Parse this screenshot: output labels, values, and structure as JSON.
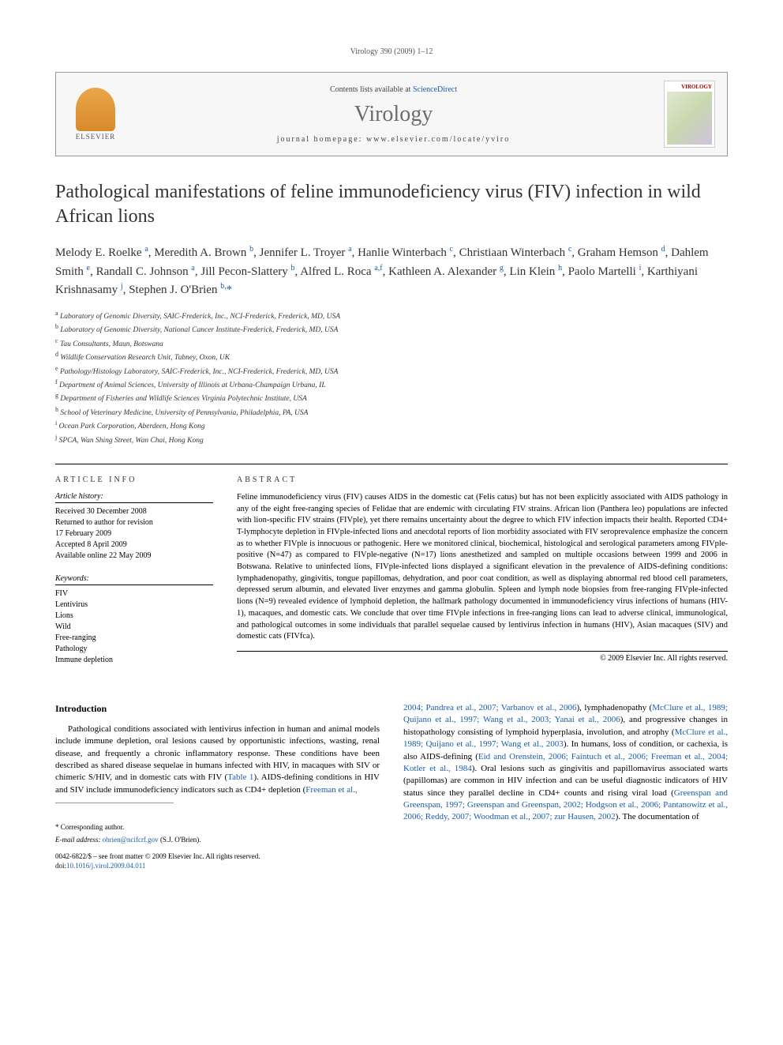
{
  "running_head": "Virology 390 (2009) 1–12",
  "banner": {
    "elsevier_label": "ELSEVIER",
    "contents_prefix": "Contents lists available at ",
    "contents_link": "ScienceDirect",
    "journal": "Virology",
    "homepage_prefix": "journal homepage: ",
    "homepage": "www.elsevier.com/locate/yviro",
    "cover_label": "VIROLOGY"
  },
  "title": "Pathological manifestations of feline immunodeficiency virus (FIV) infection in wild African lions",
  "authors_html": "Melody E. Roelke <sup>a</sup>, Meredith A. Brown <sup>b</sup>, Jennifer L. Troyer <sup>a</sup>, Hanlie Winterbach <sup>c</sup>, Christiaan Winterbach <sup>c</sup>, Graham Hemson <sup>d</sup>, Dahlem Smith <sup>e</sup>, Randall C. Johnson <sup>a</sup>, Jill Pecon-Slattery <sup>b</sup>, Alfred L. Roca <sup>a,f</sup>, Kathleen A. Alexander <sup>g</sup>, Lin Klein <sup>h</sup>, Paolo Martelli <sup>i</sup>, Karthiyani Krishnasamy <sup>j</sup>, Stephen J. O'Brien <sup>b,</sup><span class=\"star\">*</span>",
  "affiliations": [
    "a Laboratory of Genomic Diversity, SAIC-Frederick, Inc., NCI-Frederick, Frederick, MD, USA",
    "b Laboratory of Genomic Diversity, National Cancer Institute-Frederick, Frederick, MD, USA",
    "c Tau Consultants, Maun, Botswana",
    "d Wildlife Conservation Research Unit, Tubney, Oxon, UK",
    "e Pathology/Histology Laboratory, SAIC-Frederick, Inc., NCI-Frederick, Frederick, MD, USA",
    "f Department of Animal Sciences, University of Illinois at Urbana-Champaign Urbana, IL",
    "g Department of Fisheries and Wildlife Sciences Virginia Polytechnic Institute, USA",
    "h School of Veterinary Medicine, University of Pennsylvania, Philadelphia, PA, USA",
    "i Ocean Park Corporation, Aberdeen, Hong Kong",
    "j SPCA, Wan Shing Street, Wan Chai, Hong Kong"
  ],
  "article_info": {
    "heading": "ARTICLE INFO",
    "history_label": "Article history:",
    "history": [
      "Received 30 December 2008",
      "Returned to author for revision",
      "17 February 2009",
      "Accepted 8 April 2009",
      "Available online 22 May 2009"
    ],
    "keywords_label": "Keywords:",
    "keywords": [
      "FIV",
      "Lentivirus",
      "Lions",
      "Wild",
      "Free-ranging",
      "Pathology",
      "Immune depletion"
    ]
  },
  "abstract": {
    "heading": "ABSTRACT",
    "text": "Feline immunodeficiency virus (FIV) causes AIDS in the domestic cat (Felis catus) but has not been explicitly associated with AIDS pathology in any of the eight free-ranging species of Felidae that are endemic with circulating FIV strains. African lion (Panthera leo) populations are infected with lion-specific FIV strains (FIVple), yet there remains uncertainty about the degree to which FIV infection impacts their health. Reported CD4+ T-lymphocyte depletion in FIVple-infected lions and anecdotal reports of lion morbidity associated with FIV seroprevalence emphasize the concern as to whether FIVple is innocuous or pathogenic. Here we monitored clinical, biochemical, histological and serological parameters among FIVple-positive (N=47) as compared to FIVple-negative (N=17) lions anesthetized and sampled on multiple occasions between 1999 and 2006 in Botswana. Relative to uninfected lions, FIVple-infected lions displayed a significant elevation in the prevalence of AIDS-defining conditions: lymphadenopathy, gingivitis, tongue papillomas, dehydration, and poor coat condition, as well as displaying abnormal red blood cell parameters, depressed serum albumin, and elevated liver enzymes and gamma globulin. Spleen and lymph node biopsies from free-ranging FIVple-infected lions (N=9) revealed evidence of lymphoid depletion, the hallmark pathology documented in immunodeficiency virus infections of humans (HIV-1), macaques, and domestic cats. We conclude that over time FIVple infections in free-ranging lions can lead to adverse clinical, immunological, and pathological outcomes in some individuals that parallel sequelae caused by lentivirus infection in humans (HIV), Asian macaques (SIV) and domestic cats (FIVfca).",
    "copyright": "© 2009 Elsevier Inc. All rights reserved."
  },
  "body": {
    "intro_heading": "Introduction",
    "col1_html": "Pathological conditions associated with lentivirus infection in human and animal models include immune depletion, oral lesions caused by opportunistic infections, wasting, renal disease, and frequently a chronic inflammatory response. These conditions have been described as shared disease sequelae in humans infected with HIV, in macaques with SIV or chimeric S/HIV, and in domestic cats with FIV (<span class=\"citation-link\">Table 1</span>). AIDS-defining conditions in HIV and SIV include immunodeficiency indicators such as CD4+ depletion (<span class=\"citation-link\">Freeman et al.,</span>",
    "col2_html": "<span class=\"citation-link\">2004; Pandrea et al., 2007; Varbanov et al., 2006</span>), lymphadenopathy (<span class=\"citation-link\">McClure et al., 1989; Quijano et al., 1997; Wang et al., 2003; Yanai et al., 2006</span>), and progressive changes in histopathology consisting of lymphoid hyperplasia, involution, and atrophy (<span class=\"citation-link\">McClure et al., 1989; Quijano et al., 1997; Wang et al., 2003</span>). In humans, loss of condition, or cachexia, is also AIDS-defining (<span class=\"citation-link\">Eid and Orenstein, 2006; Faintuch et al., 2006; Freeman et al., 2004; Kotler et al., 1984</span>). Oral lesions such as gingivitis and papillomavirus associated warts (papillomas) are common in HIV infection and can be useful diagnostic indicators of HIV status since they parallel decline in CD4+ counts and rising viral load (<span class=\"citation-link\">Greenspan and Greenspan, 1997; Greenspan and Greenspan, 2002; Hodgson et al., 2006; Pantanowitz et al., 2006; Reddy, 2007; Woodman et al., 2007; zur Hausen, 2002</span>). The documentation of"
  },
  "footer": {
    "corr_label": "* Corresponding author.",
    "email_label": "E-mail address: ",
    "email": "obrien@ncifcrf.gov",
    "email_suffix": " (S.J. O'Brien).",
    "copyright": "0042-6822/$ – see front matter © 2009 Elsevier Inc. All rights reserved.",
    "doi_prefix": "doi:",
    "doi": "10.1016/j.virol.2009.04.011"
  },
  "colors": {
    "link": "#1a5caa",
    "text": "#000000",
    "border": "#999999",
    "journal_gray": "#6b6b6b"
  }
}
